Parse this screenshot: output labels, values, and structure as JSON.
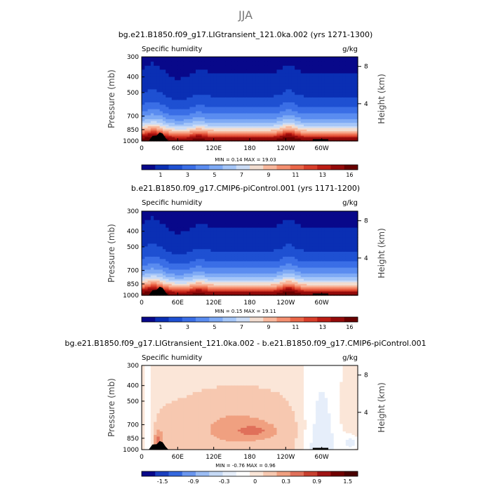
{
  "figure_title": "JJA",
  "chart_data": [
    {
      "type": "heatmap",
      "title": "bg.e21.B1850.f09_g17.LIGtransient_121.0ka.002 (yrs 1271-1300)",
      "variable": "Specific humidity",
      "units": "g/kg",
      "ylabel": "Pressure (mb)",
      "ylabel_right": "Height (km)",
      "x_ticks": [
        "0",
        "60E",
        "120E",
        "180",
        "120W",
        "60W"
      ],
      "y_ticks": [
        "300",
        "400",
        "500",
        "700",
        "850",
        "1000"
      ],
      "height_ticks": [
        "8",
        "4"
      ],
      "xlim": [
        0,
        360
      ],
      "ylim": [
        1000,
        300
      ],
      "stats_text": "MIN =    0.14   MAX =   19.03",
      "min": 0.14,
      "max": 19.03,
      "colorbar_labels": [
        "1",
        "3",
        "5",
        "7",
        "9",
        "11",
        "13",
        "16"
      ],
      "colorbar_levels": [
        1,
        2,
        3,
        4,
        5,
        6,
        7,
        8,
        9,
        10,
        11,
        12,
        13,
        14,
        16
      ]
    },
    {
      "type": "heatmap",
      "title": "b.e21.B1850.f09_g17.CMIP6-piControl.001 (yrs 1171-1200)",
      "variable": "Specific humidity",
      "units": "g/kg",
      "ylabel": "Pressure (mb)",
      "ylabel_right": "Height (km)",
      "x_ticks": [
        "0",
        "60E",
        "120E",
        "180",
        "120W",
        "60W"
      ],
      "y_ticks": [
        "300",
        "400",
        "500",
        "700",
        "850",
        "1000"
      ],
      "height_ticks": [
        "8",
        "4"
      ],
      "xlim": [
        0,
        360
      ],
      "ylim": [
        1000,
        300
      ],
      "stats_text": "MIN =    0.15   MAX =   19.11",
      "min": 0.15,
      "max": 19.11,
      "colorbar_labels": [
        "1",
        "3",
        "5",
        "7",
        "9",
        "11",
        "13",
        "16"
      ],
      "colorbar_levels": [
        1,
        2,
        3,
        4,
        5,
        6,
        7,
        8,
        9,
        10,
        11,
        12,
        13,
        14,
        16
      ]
    },
    {
      "type": "heatmap",
      "title": "bg.e21.B1850.f09_g17.LIGtransient_121.0ka.002 - b.e21.B1850.f09_g17.CMIP6-piControl.001",
      "variable": "Specific humidity",
      "units": "g/kg",
      "ylabel": "Pressure (mb)",
      "ylabel_right": "Height (km)",
      "x_ticks": [
        "0",
        "60E",
        "120E",
        "180",
        "120W",
        "60W"
      ],
      "y_ticks": [
        "300",
        "400",
        "500",
        "700",
        "850",
        "1000"
      ],
      "height_ticks": [
        "8",
        "4"
      ],
      "xlim": [
        0,
        360
      ],
      "ylim": [
        1000,
        300
      ],
      "stats_text": "MIN =   -0.76   MAX =   0.96",
      "min": -0.76,
      "max": 0.96,
      "colorbar_labels": [
        "-1.5",
        "-0.9",
        "-0.3",
        "0",
        "0.3",
        "0.9",
        "1.5"
      ],
      "colorbar_levels": [
        -1.8,
        -1.5,
        -1.2,
        -0.9,
        -0.6,
        -0.3,
        -0.1,
        0,
        0.1,
        0.3,
        0.6,
        0.9,
        1.2,
        1.5,
        1.8
      ]
    }
  ],
  "colors": {
    "seq": [
      "#08088a",
      "#0a2fb4",
      "#1e50d2",
      "#3a6ee6",
      "#5a8cf0",
      "#7eaaf5",
      "#a5c6f8",
      "#cbdcf6",
      "#f2ddd0",
      "#f8b79c",
      "#f48f70",
      "#ea6648",
      "#d83e2a",
      "#bc1d14",
      "#940a0a",
      "#680000"
    ],
    "div": [
      "#08088a",
      "#1a3fbf",
      "#3568de",
      "#6a96ee",
      "#9bbcf3",
      "#c5d9f5",
      "#e6eefa",
      "#ffffff",
      "#fbe6d8",
      "#f7c8b0",
      "#f0a080",
      "#e0705a",
      "#c8402f",
      "#a01414",
      "#700000",
      "#4a0000"
    ],
    "topo": "#000000"
  }
}
